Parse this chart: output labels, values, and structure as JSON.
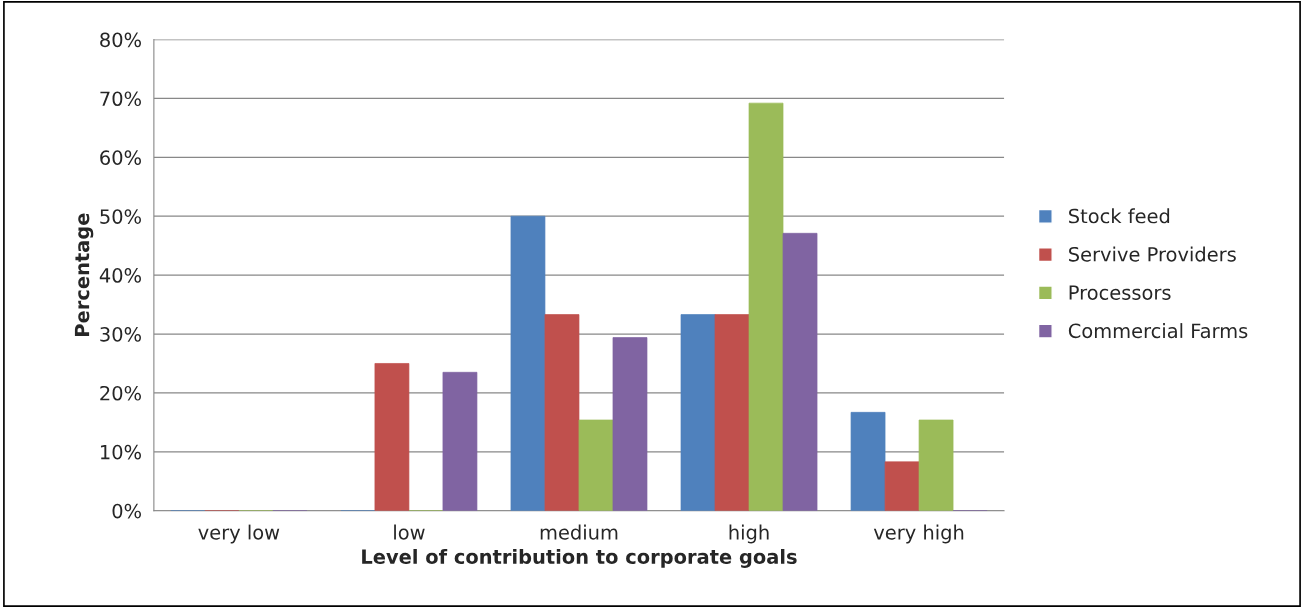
{
  "chart_data": {
    "type": "bar",
    "xlabel": "Level of contribution to corporate goals",
    "ylabel": "Percentage",
    "categories": [
      "very low",
      "low",
      "medium",
      "high",
      "very high"
    ],
    "series": [
      {
        "name": "Stock feed",
        "color": "#4f81bd",
        "values": [
          0,
          0,
          50,
          33.3,
          16.7
        ]
      },
      {
        "name": "Servive Providers",
        "color": "#c0504d",
        "values": [
          0,
          25,
          33.3,
          33.3,
          8.3
        ]
      },
      {
        "name": "Processors",
        "color": "#9bbb59",
        "values": [
          0,
          0,
          15.4,
          69.2,
          15.4
        ]
      },
      {
        "name": "Commercial Farms",
        "color": "#8064a2",
        "values": [
          0,
          23.5,
          29.4,
          47.1,
          0
        ]
      }
    ],
    "ylim": [
      0,
      80
    ],
    "yticks": [
      {
        "value": 0,
        "label": "0%"
      },
      {
        "value": 10,
        "label": "10%"
      },
      {
        "value": 20,
        "label": "20%"
      },
      {
        "value": 30,
        "label": "30%"
      },
      {
        "value": 40,
        "label": "40%"
      },
      {
        "value": 50,
        "label": "50%"
      },
      {
        "value": 60,
        "label": "60%"
      },
      {
        "value": 70,
        "label": "70%"
      },
      {
        "value": 80,
        "label": "80%"
      }
    ],
    "grid": "y",
    "legend": "right"
  }
}
